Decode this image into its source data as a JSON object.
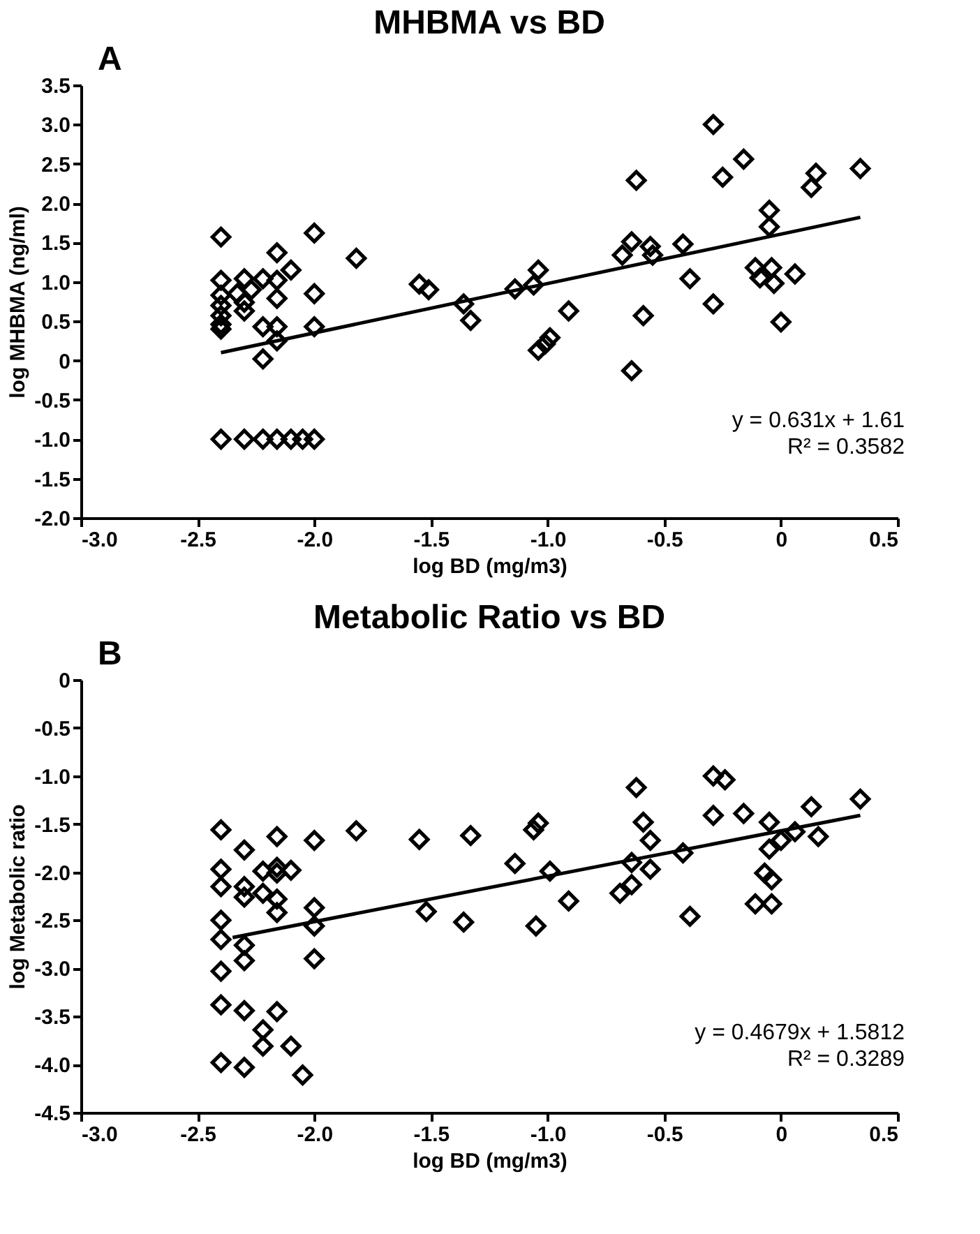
{
  "chart_data": [
    {
      "type": "scatter",
      "title": "MHBMA vs BD",
      "xlabel": "log BD (mg/m3)",
      "ylabel": "log MHBMA (ng/ml)",
      "grid": false,
      "annotations": [
        "A",
        "y = 0.631x + 1.61",
        "R² = 0.3582"
      ],
      "xlim": [
        -3,
        0.5
      ],
      "xticks": [
        {
          "value": -3,
          "label": "-3.0"
        },
        -2.5,
        {
          "value": -2,
          "label": "-2.0"
        },
        -1.5,
        {
          "value": -1,
          "label": "-1.0"
        },
        -0.5,
        0,
        0.5
      ],
      "ylim": [
        -2,
        3.5
      ],
      "yticks": [
        {
          "value": -2,
          "label": "-2.0"
        },
        -1.5,
        {
          "value": -1,
          "label": "-1.0"
        },
        -0.5,
        0,
        0.5,
        {
          "value": 1,
          "label": "1.0"
        },
        1.5,
        {
          "value": 2,
          "label": "2.0"
        },
        2.5,
        {
          "value": 3,
          "label": "3.0"
        },
        3.5
      ],
      "series": [
        {
          "marker": "diamond",
          "color": "#000000",
          "x": [
            -2.4,
            -2.4,
            -2.4,
            -2.4,
            -2.4,
            -2.4,
            -2.4,
            -2.3,
            -2.33,
            -2.3,
            -2.3,
            -2.27,
            -2.22,
            -2.22,
            -2.22,
            -2.16,
            -2.16,
            -2.16,
            -2.16,
            -2.16,
            -2.1,
            -2.0,
            -2.0,
            -2.0,
            -1.82,
            -1.55,
            -1.51,
            -1.36,
            -1.33,
            -2.4,
            -2.3,
            -2.22,
            -2.16,
            -2.1,
            -2.05,
            -2.0,
            -1.14,
            -1.06,
            -1.04,
            -0.91,
            -0.99,
            -1.04,
            -1.01,
            -0.64,
            -0.68,
            -0.62,
            -0.56,
            -0.55,
            -0.59,
            -0.64,
            -0.42,
            -0.39,
            -0.29,
            -0.29,
            -0.25,
            -0.16,
            -0.11,
            -0.09,
            -0.05,
            -0.05,
            -0.04,
            -0.03,
            0.06,
            0.0,
            0.15,
            0.13,
            0.34
          ],
          "values": [
            1.57,
            1.02,
            0.83,
            0.7,
            0.57,
            0.46,
            0.4,
            1.04,
            0.85,
            0.74,
            0.63,
            0.9,
            1.04,
            0.43,
            0.02,
            1.37,
            1.02,
            0.79,
            0.43,
            0.25,
            1.15,
            1.62,
            0.85,
            0.43,
            1.3,
            0.97,
            0.9,
            0.72,
            0.51,
            -1.0,
            -1.0,
            -1.0,
            -1.0,
            -1.0,
            -1.0,
            -1.0,
            0.91,
            0.96,
            1.15,
            0.63,
            0.29,
            0.13,
            0.21,
            1.51,
            1.34,
            2.29,
            1.45,
            1.34,
            0.57,
            -0.13,
            1.48,
            1.04,
            3.0,
            0.72,
            2.33,
            2.56,
            1.18,
            1.05,
            1.91,
            1.7,
            1.18,
            0.98,
            1.1,
            0.49,
            2.38,
            2.2,
            2.44
          ]
        },
        {
          "type": "line",
          "color": "#000000",
          "x": [
            -2.4,
            0.34
          ],
          "values": [
            0.1,
            1.82
          ]
        }
      ]
    },
    {
      "type": "scatter",
      "title": "Metabolic Ratio vs BD",
      "xlabel": "log BD (mg/m3)",
      "ylabel": "log Metabolic ratio",
      "grid": false,
      "annotations": [
        "B",
        "y = 0.4679x + 1.5812",
        "R² = 0.3289"
      ],
      "xlim": [
        -3,
        0.5
      ],
      "xticks": [
        {
          "value": -3,
          "label": "-3.0"
        },
        -2.5,
        {
          "value": -2,
          "label": "-2.0"
        },
        -1.5,
        {
          "value": -1,
          "label": "-1.0"
        },
        -0.5,
        0,
        0.5
      ],
      "ylim": [
        -4.5,
        0
      ],
      "yticks": [
        -4.5,
        {
          "value": -4,
          "label": "-4.0"
        },
        -3.5,
        {
          "value": -3,
          "label": "-3.0"
        },
        -2.5,
        {
          "value": -2,
          "label": "-2.0"
        },
        -1.5,
        {
          "value": -1,
          "label": "-1.0"
        },
        -0.5,
        0
      ],
      "series": [
        {
          "marker": "diamond",
          "color": "#000000",
          "x": [
            -2.4,
            -2.4,
            -2.4,
            -2.4,
            -2.4,
            -2.4,
            -2.4,
            -2.4,
            -2.3,
            -2.3,
            -2.3,
            -2.3,
            -2.3,
            -2.3,
            -2.3,
            -2.22,
            -2.22,
            -2.22,
            -2.22,
            -2.16,
            -2.16,
            -2.16,
            -2.16,
            -2.16,
            -2.16,
            -2.1,
            -2.1,
            -2.05,
            -2.0,
            -2.0,
            -2.0,
            -2.0,
            -1.82,
            -1.55,
            -1.52,
            -1.36,
            -1.33,
            -1.14,
            -1.06,
            -1.04,
            -0.99,
            -0.91,
            -1.05,
            -0.62,
            -0.59,
            -0.56,
            -0.56,
            -0.64,
            -0.64,
            -0.69,
            -0.42,
            -0.39,
            -0.29,
            -0.24,
            -0.29,
            -0.16,
            -0.05,
            0.0,
            -0.05,
            -0.07,
            -0.04,
            -0.11,
            -0.04,
            0.06,
            0.13,
            0.16,
            0.34
          ],
          "values": [
            -1.56,
            -1.97,
            -2.15,
            -2.5,
            -2.7,
            -3.03,
            -3.38,
            -3.98,
            -1.77,
            -2.15,
            -2.26,
            -2.76,
            -2.92,
            -3.44,
            -4.03,
            -1.99,
            -2.22,
            -3.64,
            -3.81,
            -1.63,
            -1.95,
            -2.28,
            -2.42,
            -3.45,
            -2.01,
            -1.98,
            -3.81,
            -4.11,
            -1.67,
            -2.37,
            -2.56,
            -2.9,
            -1.57,
            -1.66,
            -2.41,
            -2.52,
            -1.62,
            -1.91,
            -1.56,
            -1.49,
            -1.99,
            -2.3,
            -2.56,
            -1.12,
            -1.48,
            -1.67,
            -1.97,
            -1.9,
            -2.13,
            -2.22,
            -1.8,
            -2.46,
            -1.0,
            -1.04,
            -1.41,
            -1.39,
            -1.48,
            -1.67,
            -1.76,
            -2.01,
            -2.08,
            -2.33,
            -2.33,
            -1.58,
            -1.32,
            -1.63,
            -1.24
          ]
        },
        {
          "type": "line",
          "color": "#000000",
          "x": [
            -2.35,
            0.34
          ],
          "values": [
            -2.68,
            -1.41
          ]
        }
      ]
    }
  ]
}
